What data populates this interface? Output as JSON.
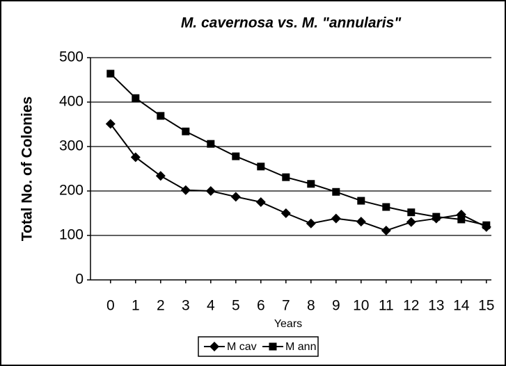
{
  "chart_data": {
    "type": "line",
    "title": "M. cavernosa vs. M. \"annularis\"",
    "x_label": "Years",
    "y_label": "Total No. of Colonies",
    "x": [
      0,
      1,
      2,
      3,
      4,
      5,
      6,
      7,
      8,
      9,
      10,
      11,
      12,
      13,
      14,
      15
    ],
    "series": [
      {
        "name": "M cav",
        "color": "#000000",
        "marker": "diamond",
        "values": [
          351,
          276,
          234,
          202,
          200,
          187,
          175,
          150,
          127,
          138,
          131,
          111,
          130,
          138,
          147,
          119
        ]
      },
      {
        "name": "M ann",
        "color": "#000000",
        "marker": "square",
        "values": [
          464,
          409,
          369,
          334,
          306,
          278,
          255,
          231,
          216,
          198,
          178,
          164,
          152,
          142,
          136,
          123
        ]
      }
    ],
    "xlim": [
      -0.8,
      15.2
    ],
    "xticks": [
      0,
      1,
      2,
      3,
      4,
      5,
      6,
      7,
      8,
      9,
      10,
      11,
      12,
      13,
      14,
      15
    ],
    "ylim": [
      0,
      500
    ],
    "yticks": [
      0,
      100,
      200,
      300,
      400,
      500
    ],
    "grid": true,
    "legend": "bottom"
  }
}
